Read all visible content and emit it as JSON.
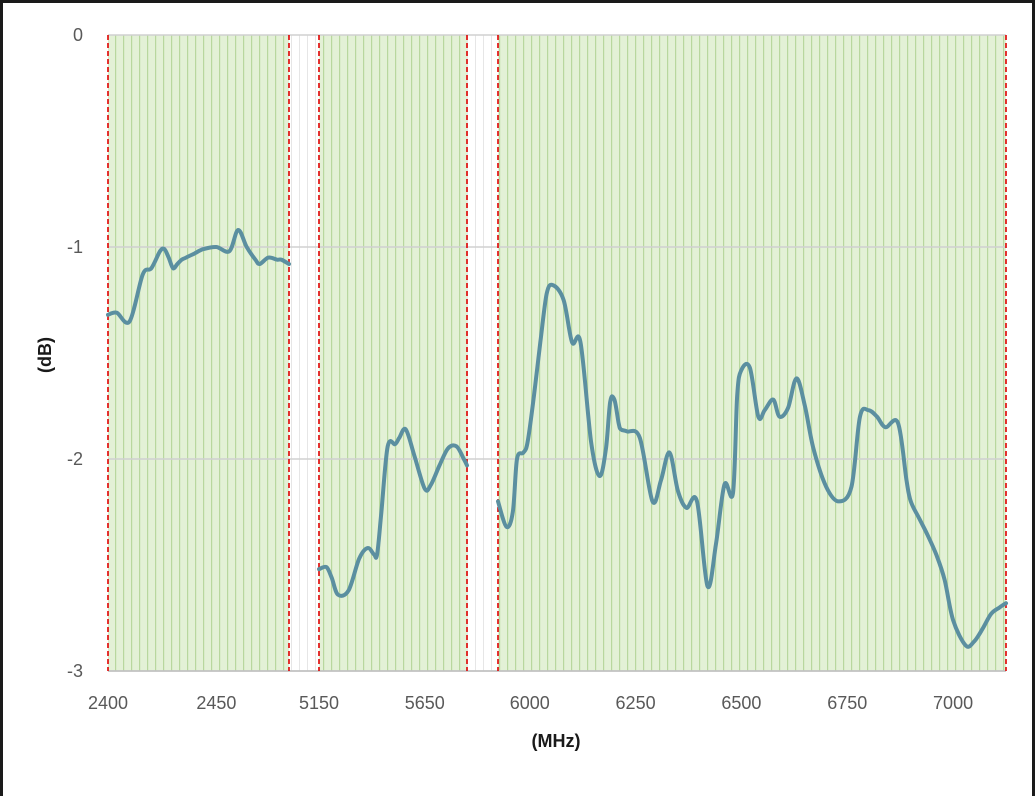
{
  "chart_data": {
    "type": "line",
    "title": "",
    "xlabel": "(MHz)",
    "ylabel": "(dB)",
    "ylim": [
      -3,
      0
    ],
    "yticks": [
      0,
      -1,
      -2,
      -3
    ],
    "grid": "horizontal",
    "x_axis": "piecewise",
    "colors": {
      "band_fill": "#e3f1d6",
      "band_stripe": "#b8d79e",
      "band_edge": "#e00000",
      "line": "#5b8fa0",
      "grid": "#d0d0d0",
      "frame": "#1a1a1a"
    },
    "bands": [
      {
        "range": [
          2400,
          2483.5
        ],
        "xticks": [
          2400,
          2450
        ]
      },
      {
        "range": [
          5150,
          5850
        ],
        "xticks": [
          5150,
          5650
        ]
      },
      {
        "range": [
          5925,
          7125
        ],
        "xticks": [
          6000,
          6250,
          6500,
          6750,
          7000
        ]
      }
    ],
    "series": [
      {
        "segments": [
          {
            "x": [
              2400,
              2404,
              2410,
              2416,
              2420,
              2424,
              2426,
              2428,
              2430,
              2432,
              2434,
              2436,
              2440,
              2444,
              2450,
              2456,
              2460,
              2464,
              2468,
              2470,
              2474,
              2478,
              2480,
              2483.5
            ],
            "y": [
              -1.32,
              -1.31,
              -1.35,
              -1.13,
              -1.1,
              -1.02,
              -1.01,
              -1.05,
              -1.1,
              -1.08,
              -1.06,
              -1.05,
              -1.03,
              -1.01,
              -1.0,
              -1.02,
              -0.92,
              -1.0,
              -1.06,
              -1.08,
              -1.05,
              -1.06,
              -1.06,
              -1.08
            ]
          },
          {
            "x": [
              5150,
              5185,
              5210,
              5240,
              5290,
              5340,
              5380,
              5410,
              5425,
              5445,
              5475,
              5510,
              5530,
              5560,
              5600,
              5650,
              5680,
              5720,
              5760,
              5800,
              5835,
              5850
            ],
            "y": [
              -2.52,
              -2.51,
              -2.56,
              -2.64,
              -2.62,
              -2.47,
              -2.42,
              -2.45,
              -2.45,
              -2.25,
              -1.94,
              -1.93,
              -1.9,
              -1.86,
              -1.98,
              -2.14,
              -2.12,
              -2.03,
              -1.95,
              -1.94,
              -2.0,
              -2.03
            ]
          },
          {
            "x": [
              5925,
              5945,
              5960,
              5970,
              5985,
              5995,
              6010,
              6025,
              6040,
              6055,
              6080,
              6100,
              6120,
              6145,
              6165,
              6180,
              6190,
              6200,
              6210,
              6215,
              6230,
              6260,
              6290,
              6310,
              6330,
              6350,
              6370,
              6395,
              6420,
              6440,
              6460,
              6480,
              6490,
              6500,
              6520,
              6540,
              6555,
              6575,
              6590,
              6610,
              6630,
              6650,
              6670,
              6700,
              6730,
              6760,
              6780,
              6800,
              6820,
              6840,
              6870,
              6890,
              6900,
              6920,
              6940,
              6960,
              6980,
              7000,
              7030,
              7050,
              7070,
              7090,
              7110,
              7125
            ],
            "y": [
              -2.2,
              -2.32,
              -2.25,
              -2.0,
              -1.97,
              -1.92,
              -1.7,
              -1.45,
              -1.22,
              -1.18,
              -1.25,
              -1.45,
              -1.45,
              -1.92,
              -2.08,
              -1.95,
              -1.73,
              -1.72,
              -1.83,
              -1.86,
              -1.87,
              -1.9,
              -2.2,
              -2.1,
              -1.97,
              -2.15,
              -2.23,
              -2.2,
              -2.6,
              -2.4,
              -2.12,
              -2.16,
              -1.7,
              -1.58,
              -1.57,
              -1.8,
              -1.77,
              -1.72,
              -1.8,
              -1.76,
              -1.62,
              -1.75,
              -1.95,
              -2.13,
              -2.2,
              -2.13,
              -1.8,
              -1.77,
              -1.8,
              -1.85,
              -1.83,
              -2.1,
              -2.2,
              -2.28,
              -2.36,
              -2.45,
              -2.57,
              -2.76,
              -2.88,
              -2.86,
              -2.8,
              -2.73,
              -2.7,
              -2.68
            ]
          }
        ]
      }
    ]
  }
}
